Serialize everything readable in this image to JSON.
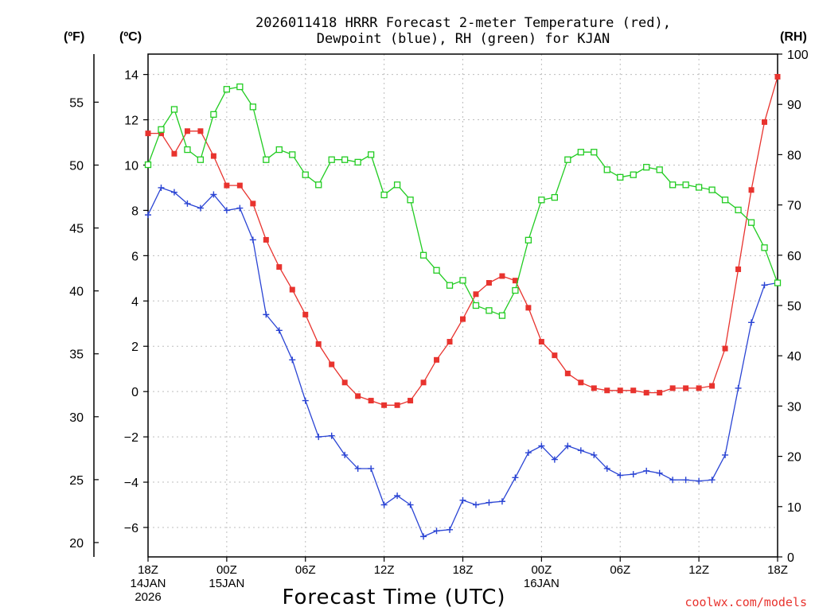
{
  "chart_data": {
    "type": "line",
    "title_lines": [
      "2026011418 HRRR Forecast 2-meter Temperature (red),",
      "Dewpoint (blue), RH (green) for KJAN"
    ],
    "xlabel": "Forecast Time (UTC)",
    "credit": "coolwx.com/models",
    "unit_labels": {
      "fahrenheit": "(ºF)",
      "celsius": "(ºC)",
      "rh": "(RH)"
    },
    "x_range_hours": [
      0,
      48
    ],
    "x_ticks": [
      {
        "hour": 0,
        "lines": [
          "18Z",
          "14JAN",
          "2026"
        ]
      },
      {
        "hour": 6,
        "lines": [
          "00Z",
          "15JAN"
        ]
      },
      {
        "hour": 12,
        "lines": [
          "06Z"
        ]
      },
      {
        "hour": 18,
        "lines": [
          "12Z"
        ]
      },
      {
        "hour": 24,
        "lines": [
          "18Z"
        ]
      },
      {
        "hour": 30,
        "lines": [
          "00Z",
          "16JAN"
        ]
      },
      {
        "hour": 36,
        "lines": [
          "06Z"
        ]
      },
      {
        "hour": 42,
        "lines": [
          "12Z"
        ]
      },
      {
        "hour": 48,
        "lines": [
          "18Z"
        ]
      }
    ],
    "celsius_axis": {
      "range": [
        -7.3,
        14.9
      ],
      "ticks": [
        -6,
        -4,
        -2,
        0,
        2,
        4,
        6,
        8,
        10,
        12,
        14
      ]
    },
    "fahrenheit_axis": {
      "ticks": [
        20,
        25,
        30,
        35,
        40,
        45,
        50,
        55
      ]
    },
    "rh_axis": {
      "range": [
        0,
        100
      ],
      "ticks": [
        0,
        10,
        20,
        30,
        40,
        50,
        60,
        70,
        80,
        90,
        100
      ]
    },
    "series": [
      {
        "name": "Temperature",
        "units": "C",
        "color": "#e8332e",
        "marker": "filled-square",
        "values": [
          11.4,
          11.4,
          10.5,
          11.5,
          11.5,
          10.4,
          9.1,
          9.1,
          8.3,
          6.7,
          5.5,
          4.5,
          3.4,
          2.1,
          1.2,
          0.4,
          -0.2,
          -0.4,
          -0.6,
          -0.6,
          -0.4,
          0.4,
          1.4,
          2.2,
          3.2,
          4.3,
          4.8,
          5.1,
          4.9,
          3.7,
          2.2,
          1.6,
          0.8,
          0.4,
          0.15,
          0.05,
          0.05,
          0.05,
          -0.05,
          -0.05,
          0.15,
          0.15,
          0.15,
          0.25,
          1.9,
          5.4,
          8.9,
          11.9,
          13.9
        ]
      },
      {
        "name": "Dewpoint",
        "units": "C",
        "color": "#2a44d4",
        "marker": "plus",
        "values": [
          7.8,
          9.0,
          8.8,
          8.3,
          8.1,
          8.7,
          8.0,
          8.1,
          6.7,
          3.4,
          2.7,
          1.4,
          -0.4,
          -2.0,
          -1.95,
          -2.8,
          -3.4,
          -3.4,
          -5.0,
          -4.6,
          -5.0,
          -6.4,
          -6.15,
          -6.1,
          -4.8,
          -5.0,
          -4.9,
          -4.85,
          -3.8,
          -2.7,
          -2.4,
          -3.0,
          -2.4,
          -2.6,
          -2.8,
          -3.4,
          -3.7,
          -3.65,
          -3.5,
          -3.6,
          -3.9,
          -3.9,
          -3.95,
          -3.9,
          -2.8,
          0.15,
          3.05,
          4.7,
          4.8
        ]
      },
      {
        "name": "Relative Humidity",
        "units": "%",
        "color": "#22cc22",
        "marker": "hollow-square",
        "values": [
          78,
          85,
          89,
          81,
          79,
          88,
          93,
          93.5,
          89.5,
          79,
          81,
          80,
          76,
          74,
          79,
          79,
          78.5,
          80,
          72,
          74,
          71,
          60,
          57,
          54,
          55,
          50,
          49,
          48,
          53,
          63,
          71,
          71.5,
          79,
          80.5,
          80.5,
          77,
          75.5,
          76,
          77.5,
          77,
          74,
          74,
          73.5,
          73,
          71,
          69,
          66.5,
          61.5,
          54.5
        ]
      }
    ]
  }
}
